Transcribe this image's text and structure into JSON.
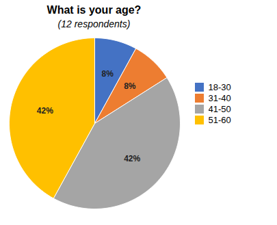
{
  "chart_data": {
    "type": "pie",
    "title": "What is your age?",
    "subtitle": "(12 respondents)",
    "categories": [
      "18-30",
      "31-40",
      "41-50",
      "51-60"
    ],
    "values": [
      8,
      8,
      42,
      42
    ],
    "value_labels": [
      "8%",
      "8%",
      "42%",
      "42%"
    ],
    "colors": [
      "#4472C4",
      "#ED7D31",
      "#A5A5A5",
      "#FFC000"
    ],
    "data_labels": true,
    "legend": "right"
  }
}
